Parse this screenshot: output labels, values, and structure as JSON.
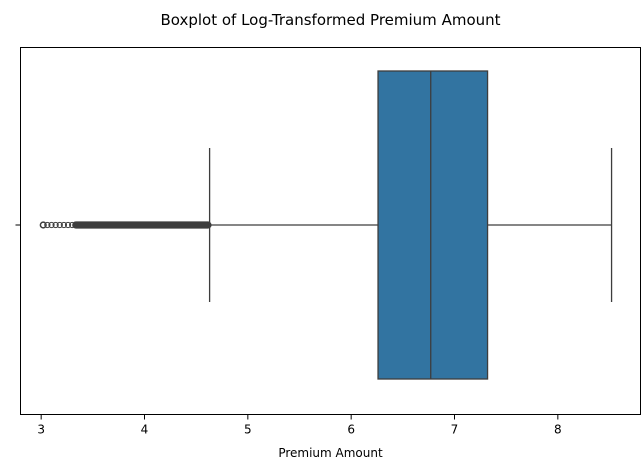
{
  "chart_data": {
    "type": "boxplot",
    "orientation": "horizontal",
    "title": "Boxplot of Log-Transformed Premium Amount",
    "xlabel": "Premium Amount",
    "ylabel": "",
    "xlim": [
      2.8,
      8.8
    ],
    "xticks": [
      3,
      4,
      5,
      6,
      7,
      8
    ],
    "xtick_labels": [
      "3",
      "4",
      "5",
      "6",
      "7",
      "8"
    ],
    "ytick_labels": [
      ""
    ],
    "grid": false,
    "legend": "none",
    "box": {
      "whisker_low": 4.63,
      "q1": 6.26,
      "median": 6.77,
      "q3": 7.32,
      "whisker_high": 8.52,
      "fill_color": "#3274a1",
      "line_color": "#3d3d3d"
    },
    "outliers": {
      "range": [
        3.02,
        4.63
      ],
      "sparse_points": [
        3.02,
        3.06,
        3.1,
        3.14,
        3.18,
        3.22,
        3.26,
        3.3
      ],
      "dense_from": 3.3
    }
  }
}
